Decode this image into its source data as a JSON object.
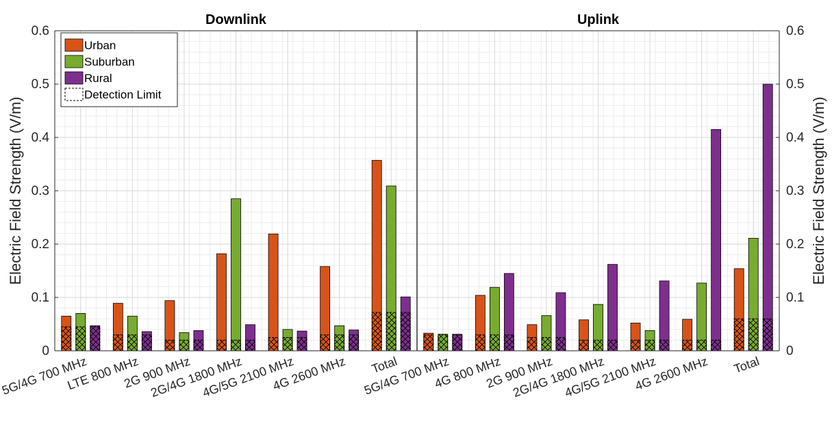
{
  "chart_data": [
    {
      "type": "bar",
      "title": "Downlink",
      "ylabel": "Electric Field Strength (V/m)",
      "ylim": [
        0,
        0.6
      ],
      "yticks": [
        "0",
        "0.1",
        "0.2",
        "0.3",
        "0.4",
        "0.5",
        "0.6"
      ],
      "grid": true,
      "legend_position": "top-left",
      "categories": [
        "5G/4G 700 MHz",
        "LTE 800 MHz",
        "2G 900 MHz",
        "2G/4G 1800 MHz",
        "4G/5G 2100 MHz",
        "4G 2600 MHz",
        "Total"
      ],
      "series": [
        {
          "name": "Urban",
          "color": "#D95319",
          "values": [
            0.065,
            0.089,
            0.094,
            0.182,
            0.219,
            0.158,
            0.357
          ]
        },
        {
          "name": "Suburban",
          "color": "#77AC30",
          "values": [
            0.07,
            0.065,
            0.034,
            0.285,
            0.04,
            0.047,
            0.309
          ]
        },
        {
          "name": "Rural",
          "color": "#7E2F8E",
          "values": [
            0.047,
            0.036,
            0.038,
            0.049,
            0.037,
            0.039,
            0.101
          ]
        },
        {
          "name": "Detection Limit",
          "values": [
            [
              0.045,
              0.045,
              0.045
            ],
            [
              0.03,
              0.03,
              0.03
            ],
            [
              0.02,
              0.02,
              0.02
            ],
            [
              0.02,
              0.02,
              0.02
            ],
            [
              0.025,
              0.025,
              0.025
            ],
            [
              0.03,
              0.03,
              0.03
            ],
            [
              0.072,
              0.072,
              0.072
            ]
          ]
        }
      ]
    },
    {
      "type": "bar",
      "title": "Uplink",
      "ylabel": "Electric Field Strength (V/m)",
      "ylim": [
        0,
        0.6
      ],
      "yticks": [
        "0",
        "0.1",
        "0.2",
        "0.3",
        "0.4",
        "0.5",
        "0.6"
      ],
      "grid": true,
      "categories": [
        "5G/4G 700 MHz",
        "4G 800 MHz",
        "2G 900 MHz",
        "2G/4G 1800 MHz",
        "4G/5G 2100 MHz",
        "4G 2600 MHz",
        "Total"
      ],
      "series": [
        {
          "name": "Urban",
          "color": "#D95319",
          "values": [
            0.033,
            0.104,
            0.049,
            0.058,
            0.052,
            0.059,
            0.154
          ]
        },
        {
          "name": "Suburban",
          "color": "#77AC30",
          "values": [
            0.031,
            0.119,
            0.066,
            0.087,
            0.038,
            0.127,
            0.211
          ]
        },
        {
          "name": "Rural",
          "color": "#7E2F8E",
          "values": [
            0.031,
            0.145,
            0.109,
            0.162,
            0.131,
            0.415,
            0.5
          ]
        },
        {
          "name": "Detection Limit",
          "values": [
            [
              0.03,
              0.03,
              0.03
            ],
            [
              0.03,
              0.03,
              0.03
            ],
            [
              0.025,
              0.025,
              0.025
            ],
            [
              0.02,
              0.02,
              0.02
            ],
            [
              0.02,
              0.02,
              0.02
            ],
            [
              0.02,
              0.02,
              0.02
            ],
            [
              0.06,
              0.06,
              0.06
            ]
          ]
        }
      ]
    }
  ]
}
